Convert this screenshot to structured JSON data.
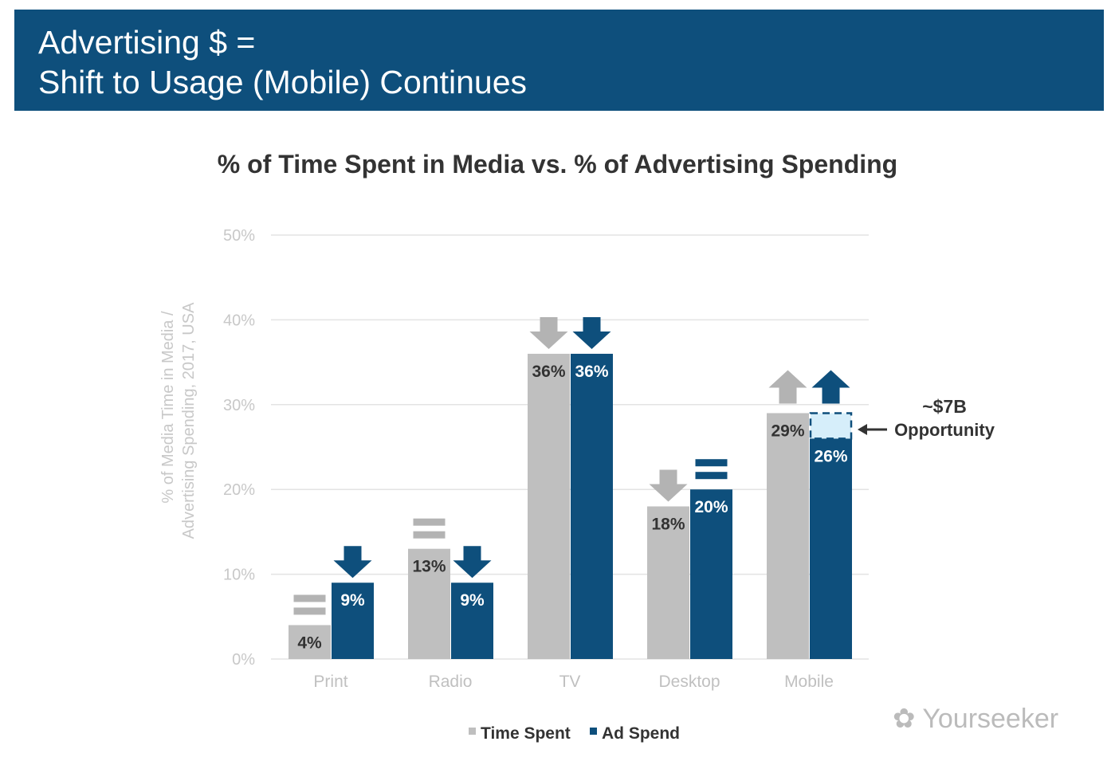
{
  "header": {
    "line1": "Advertising $ =",
    "line2": "Shift to Usage (Mobile) Continues"
  },
  "watermark": "Yourseeker",
  "chart_data": {
    "type": "bar",
    "title": "% of Time Spent in Media vs. % of Advertising Spending",
    "ylabel_line1": "% of Media Time in Media /",
    "ylabel_line2": "Advertising Spending, 2017, USA",
    "ylim": [
      0,
      50
    ],
    "yticks": [
      "0%",
      "10%",
      "20%",
      "30%",
      "40%",
      "50%"
    ],
    "grid": true,
    "legend_position": "bottom",
    "categories": [
      "Print",
      "Radio",
      "TV",
      "Desktop",
      "Mobile"
    ],
    "series": [
      {
        "name": "Time Spent",
        "color": "#bfbfbf",
        "values": [
          4,
          13,
          36,
          18,
          29
        ],
        "labels": [
          "4%",
          "13%",
          "36%",
          "18%",
          "29%"
        ],
        "trend": [
          "equal",
          "equal",
          "down",
          "down",
          "up"
        ]
      },
      {
        "name": "Ad Spend",
        "color": "#0e4f7c",
        "values": [
          9,
          9,
          36,
          20,
          26
        ],
        "labels": [
          "9%",
          "9%",
          "36%",
          "20%",
          "26%"
        ],
        "trend": [
          "down",
          "down",
          "down",
          "equal",
          "up"
        ]
      }
    ],
    "annotation": {
      "category": "Mobile",
      "gap_from": 26,
      "gap_to": 29,
      "fill": "#d6eefa",
      "line1": "~$7B",
      "line2": "Opportunity"
    }
  }
}
